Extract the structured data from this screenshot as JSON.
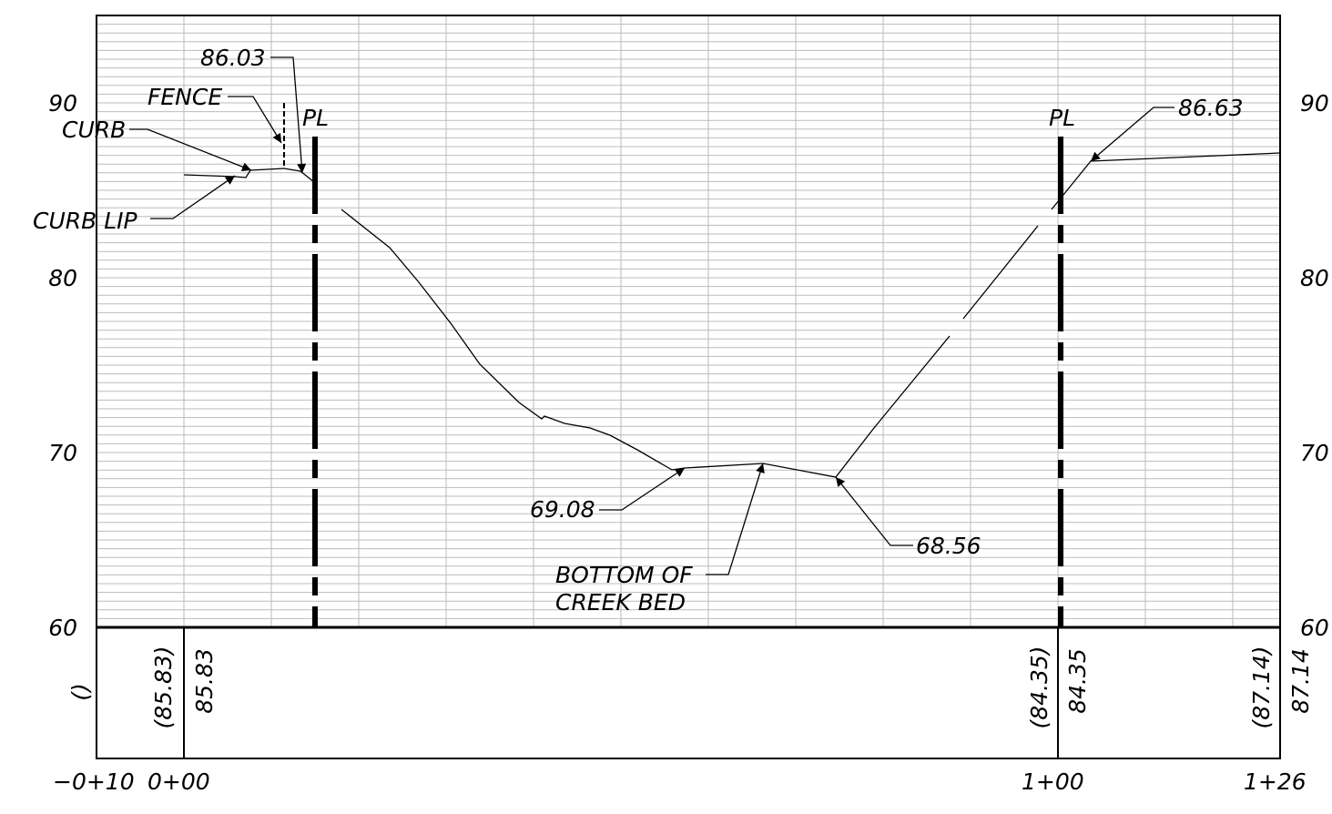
{
  "axis_left": {
    "labels": [
      "90",
      "80",
      "70",
      "60"
    ]
  },
  "axis_right": {
    "labels": [
      "90",
      "80",
      "70",
      "60"
    ]
  },
  "callouts": {
    "top_left_elevation": "86.03",
    "fence": "FENCE",
    "curb": "CURB",
    "curb_lip": "CURB LIP",
    "pl_left": "PL",
    "pl_right": "PL",
    "top_right_elevation": "86.63",
    "low_left": "69.08",
    "bottom_line1": "BOTTOM OF",
    "bottom_line2": "CREEK BED",
    "low_right": "68.56"
  },
  "band": {
    "labels": [
      "()",
      "(85.83)",
      "85.83",
      "(84.35)",
      "84.35",
      "(87.14)",
      "87.14"
    ]
  },
  "stations": {
    "labels": [
      "−0+10",
      "0+00",
      "1+00",
      "1+26"
    ]
  }
}
